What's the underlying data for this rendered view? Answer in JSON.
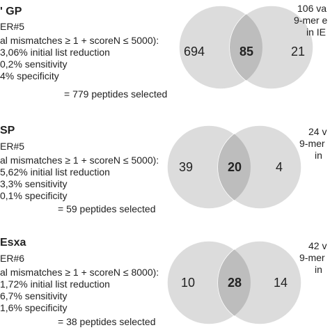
{
  "colors": {
    "circle": "#dcdcdc",
    "overlap": "#bdbdbd",
    "stroke": "#ffffff",
    "text": "#222222"
  },
  "panels": [
    {
      "title": "' GP",
      "subtitle": "ER#5",
      "criteria": "al mismatches ≥ 1 + scoreN ≤ 5000):",
      "reduction": "3,06% initial list reduction",
      "sensitivity": "0,2% sensitivity",
      "specificity": "4% specificity",
      "selected": "= 779 peptides selected",
      "left_count": "694",
      "overlap_count": "85",
      "right_count": "21",
      "side": [
        "106 va",
        "9-mer e",
        "in IE"
      ]
    },
    {
      "title": "SP",
      "subtitle": "ER#5",
      "criteria": "al mismatches ≥ 1 + scoreN ≤ 5000):",
      "reduction": "5,62% initial list reduction",
      "sensitivity": "3,3% sensitivity",
      "specificity": "0,1% specificity",
      "selected": "= 59 peptides selected",
      "left_count": "39",
      "overlap_count": "20",
      "right_count": "4",
      "side": [
        "24 v",
        "9-mer",
        "in"
      ]
    },
    {
      "title": "Esxa",
      "subtitle": "ER#6",
      "criteria": "al mismatches ≥ 1 + scoreN ≤ 8000):",
      "reduction": "1,72% initial list reduction",
      "sensitivity": "6,7% sensitivity",
      "specificity": "1,6% specificity",
      "selected": "= 38 peptides selected",
      "left_count": "10",
      "overlap_count": "28",
      "right_count": "14",
      "side": [
        "42 v",
        "9-mer",
        "in"
      ]
    }
  ]
}
